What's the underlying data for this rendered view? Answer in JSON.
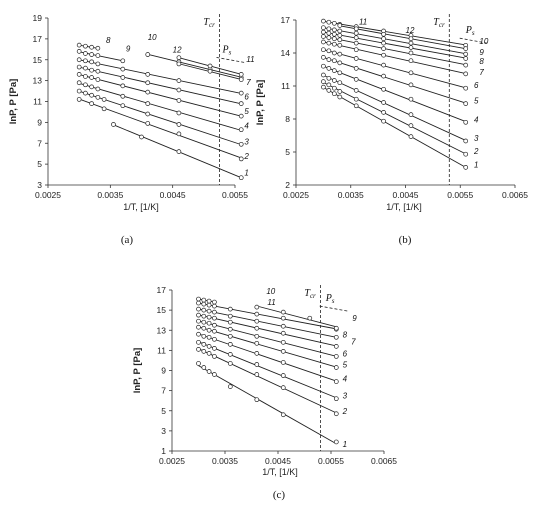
{
  "colors": {
    "ink": "#222222",
    "background": "#ffffff"
  },
  "chart_data": [
    {
      "type": "scatter",
      "panel_label": "(a)",
      "xlabel": "1/T, [1/K]",
      "ylabel": "lnP, P [Pa]",
      "xlim": [
        0.0025,
        0.0055
      ],
      "ylim": [
        3,
        19
      ],
      "xticks": [
        "0.0025",
        "0.0035",
        "0.0045",
        "0.0055"
      ],
      "yticks": [
        "3",
        "5",
        "7",
        "9",
        "11",
        "13",
        "15",
        "17",
        "19"
      ],
      "tcr_label": "T",
      "tcr_sub": "cr",
      "ps_label": "P",
      "ps_sub": "s",
      "tcr_x": 0.00525,
      "series": [
        {
          "name": "1",
          "x": [
            0.00355,
            0.004,
            0.0046,
            0.0056
          ],
          "y": [
            8.8,
            7.6,
            6.2,
            3.7
          ]
        },
        {
          "name": "2",
          "x": [
            0.003,
            0.0032,
            0.0034,
            0.0041,
            0.0046,
            0.0056
          ],
          "y": [
            11.2,
            10.8,
            10.3,
            8.9,
            7.9,
            5.5
          ]
        },
        {
          "name": "3",
          "x": [
            0.003,
            0.0031,
            0.0032,
            0.0033,
            0.0034,
            0.0037,
            0.0041,
            0.0046,
            0.0056
          ],
          "y": [
            12.0,
            11.8,
            11.6,
            11.4,
            11.2,
            10.6,
            9.8,
            8.8,
            6.9
          ]
        },
        {
          "name": "4",
          "x": [
            0.003,
            0.0031,
            0.0032,
            0.0033,
            0.0037,
            0.0041,
            0.0046,
            0.0056
          ],
          "y": [
            12.8,
            12.6,
            12.4,
            12.2,
            11.5,
            10.8,
            9.9,
            8.3
          ]
        },
        {
          "name": "5",
          "x": [
            0.003,
            0.0031,
            0.0032,
            0.0033,
            0.0037,
            0.0041,
            0.0046,
            0.0056
          ],
          "y": [
            13.6,
            13.4,
            13.3,
            13.1,
            12.5,
            11.9,
            11.1,
            9.6
          ]
        },
        {
          "name": "6",
          "x": [
            0.003,
            0.0031,
            0.0032,
            0.0033,
            0.0037,
            0.0041,
            0.0046,
            0.0056
          ],
          "y": [
            14.3,
            14.2,
            14.0,
            13.9,
            13.3,
            12.8,
            12.1,
            10.8
          ]
        },
        {
          "name": "7",
          "x": [
            0.003,
            0.0031,
            0.0032,
            0.0033,
            0.0037,
            0.0041,
            0.0046,
            0.0056
          ],
          "y": [
            15.0,
            14.9,
            14.8,
            14.6,
            14.1,
            13.6,
            13.0,
            11.8
          ]
        },
        {
          "name": "8",
          "x": [
            0.003,
            0.0031,
            0.0032,
            0.0033,
            0.0037
          ],
          "y": [
            15.8,
            15.6,
            15.5,
            15.4,
            14.9
          ]
        },
        {
          "name": "9",
          "x": [
            0.003,
            0.0031,
            0.0032,
            0.0033
          ],
          "y": [
            16.4,
            16.3,
            16.2,
            16.1
          ]
        },
        {
          "name": "10",
          "x": [
            0.0041,
            0.0046,
            0.0051,
            0.0056
          ],
          "y": [
            15.5,
            14.8,
            14.1,
            13.3
          ]
        },
        {
          "name": "11",
          "x": [
            0.0046,
            0.0051,
            0.0056
          ],
          "y": [
            15.2,
            14.4,
            13.6
          ]
        },
        {
          "name": "12",
          "x": [
            0.0046,
            0.0051,
            0.0056
          ],
          "y": [
            14.6,
            13.9,
            13.1
          ]
        }
      ]
    },
    {
      "type": "scatter",
      "panel_label": "(b)",
      "xlabel": "1/T, [1/K]",
      "ylabel": "lnP, P [Pa]",
      "xlim": [
        0.0025,
        0.0065
      ],
      "ylim": [
        2,
        17
      ],
      "xticks": [
        "0.0025",
        "0.0035",
        "0.0045",
        "0.0055",
        "0.0065"
      ],
      "yticks": [
        "2",
        "5",
        "8",
        "11",
        "14",
        "17"
      ],
      "tcr_label": "T",
      "tcr_sub": "cr",
      "ps_label": "P",
      "ps_sub": "s",
      "tcr_x": 0.0053,
      "series": [
        {
          "name": "1",
          "x": [
            0.003,
            0.0031,
            0.0032,
            0.0033,
            0.0036,
            0.0041,
            0.0046,
            0.0056
          ],
          "y": [
            10.9,
            10.6,
            10.3,
            10.0,
            9.2,
            7.8,
            6.4,
            3.6
          ]
        },
        {
          "name": "2",
          "x": [
            0.003,
            0.0031,
            0.0032,
            0.0033,
            0.0036,
            0.0041,
            0.0046,
            0.0056
          ],
          "y": [
            11.4,
            11.1,
            10.8,
            10.5,
            9.8,
            8.6,
            7.4,
            4.8
          ]
        },
        {
          "name": "3",
          "x": [
            0.003,
            0.0031,
            0.0032,
            0.0033,
            0.0036,
            0.0041,
            0.0046,
            0.0056
          ],
          "y": [
            12.0,
            11.7,
            11.5,
            11.3,
            10.6,
            9.5,
            8.4,
            6.0
          ]
        },
        {
          "name": "4",
          "x": [
            0.003,
            0.0031,
            0.0032,
            0.0033,
            0.0036,
            0.0041,
            0.0046,
            0.0056
          ],
          "y": [
            12.8,
            12.6,
            12.4,
            12.2,
            11.6,
            10.7,
            9.8,
            7.7
          ]
        },
        {
          "name": "5",
          "x": [
            0.003,
            0.0031,
            0.0032,
            0.0033,
            0.0036,
            0.0041,
            0.0046,
            0.0056
          ],
          "y": [
            13.6,
            13.4,
            13.3,
            13.1,
            12.6,
            11.9,
            11.1,
            9.4
          ]
        },
        {
          "name": "6",
          "x": [
            0.003,
            0.0031,
            0.0032,
            0.0033,
            0.0036,
            0.0041,
            0.0046,
            0.0056
          ],
          "y": [
            14.3,
            14.2,
            14.0,
            13.9,
            13.5,
            12.9,
            12.2,
            10.8
          ]
        },
        {
          "name": "7",
          "x": [
            0.003,
            0.0031,
            0.0032,
            0.0033,
            0.0036,
            0.0041,
            0.0046,
            0.0056
          ],
          "y": [
            15.0,
            14.9,
            14.8,
            14.7,
            14.3,
            13.8,
            13.3,
            12.1
          ]
        },
        {
          "name": "8",
          "x": [
            0.003,
            0.0031,
            0.0032,
            0.0033,
            0.0036,
            0.0041,
            0.0046,
            0.0056
          ],
          "y": [
            15.5,
            15.4,
            15.3,
            15.2,
            14.9,
            14.4,
            14.0,
            12.9
          ]
        },
        {
          "name": "9",
          "x": [
            0.003,
            0.0031,
            0.0032,
            0.0033,
            0.0036,
            0.0041,
            0.0046,
            0.0056
          ],
          "y": [
            15.9,
            15.8,
            15.7,
            15.6,
            15.4,
            14.9,
            14.5,
            13.5
          ]
        },
        {
          "name": "10",
          "x": [
            0.003,
            0.0031,
            0.0032,
            0.0033,
            0.0036,
            0.0041,
            0.0046,
            0.0056
          ],
          "y": [
            16.3,
            16.2,
            16.1,
            16.0,
            15.8,
            15.3,
            14.9,
            13.9
          ]
        },
        {
          "name": "11",
          "x": [
            0.003,
            0.0031,
            0.0032,
            0.0033,
            0.0036,
            0.0041,
            0.0046,
            0.0056
          ],
          "y": [
            16.9,
            16.8,
            16.7,
            16.6,
            16.4,
            16.0,
            15.6,
            14.7
          ]
        },
        {
          "name": "12",
          "x": [
            0.0033,
            0.0036,
            0.0041,
            0.0046,
            0.0056
          ],
          "y": [
            16.5,
            16.2,
            15.7,
            15.3,
            14.4
          ]
        }
      ]
    },
    {
      "type": "scatter",
      "panel_label": "(c)",
      "xlabel": "1/T, [1/K]",
      "ylabel": "lnP, P [Pa]",
      "xlim": [
        0.0025,
        0.0065
      ],
      "ylim": [
        1,
        17
      ],
      "xticks": [
        "0.0025",
        "0.0035",
        "0.0045",
        "0.0055",
        "0.0065"
      ],
      "yticks": [
        "1",
        "3",
        "5",
        "7",
        "9",
        "11",
        "13",
        "15",
        "17"
      ],
      "tcr_label": "T",
      "tcr_sub": "cr",
      "ps_label": "P",
      "ps_sub": "s",
      "tcr_x": 0.0053,
      "series": [
        {
          "name": "1",
          "x": [
            0.003,
            0.0031,
            0.0032,
            0.0033,
            0.0036,
            0.0041,
            0.0046,
            0.0056
          ],
          "y": [
            9.7,
            9.3,
            8.9,
            8.6,
            7.4,
            6.1,
            4.6,
            1.9
          ]
        },
        {
          "name": "2",
          "x": [
            0.003,
            0.0031,
            0.0032,
            0.0033,
            0.0036,
            0.0041,
            0.0046,
            0.0056
          ],
          "y": [
            11.1,
            10.9,
            10.7,
            10.4,
            9.7,
            8.6,
            7.3,
            4.7
          ]
        },
        {
          "name": "3",
          "x": [
            0.003,
            0.0031,
            0.0032,
            0.0033,
            0.0036,
            0.0041,
            0.0046,
            0.0056
          ],
          "y": [
            11.8,
            11.6,
            11.4,
            11.2,
            10.6,
            9.6,
            8.5,
            6.2
          ]
        },
        {
          "name": "4",
          "x": [
            0.003,
            0.0031,
            0.0032,
            0.0033,
            0.0036,
            0.0041,
            0.0046,
            0.0056
          ],
          "y": [
            12.6,
            12.4,
            12.3,
            12.1,
            11.6,
            10.7,
            9.8,
            7.9
          ]
        },
        {
          "name": "5",
          "x": [
            0.003,
            0.0031,
            0.0032,
            0.0033,
            0.0036,
            0.0041,
            0.0046,
            0.0056
          ],
          "y": [
            13.3,
            13.2,
            13.0,
            12.9,
            12.4,
            11.7,
            10.9,
            9.3
          ]
        },
        {
          "name": "6",
          "x": [
            0.003,
            0.0031,
            0.0032,
            0.0033,
            0.0036,
            0.0041,
            0.0046,
            0.0056
          ],
          "y": [
            13.9,
            13.8,
            13.7,
            13.5,
            13.1,
            12.4,
            11.8,
            10.4
          ]
        },
        {
          "name": "7",
          "x": [
            0.003,
            0.0031,
            0.0032,
            0.0033,
            0.0036,
            0.0041,
            0.0046,
            0.0056
          ],
          "y": [
            14.5,
            14.4,
            14.3,
            14.2,
            13.8,
            13.2,
            12.7,
            11.4
          ]
        },
        {
          "name": "8",
          "x": [
            0.003,
            0.0031,
            0.0032,
            0.0033,
            0.0036,
            0.0041,
            0.0046,
            0.0056
          ],
          "y": [
            15.1,
            15.0,
            14.9,
            14.8,
            14.4,
            13.9,
            13.4,
            12.3
          ]
        },
        {
          "name": "9",
          "x": [
            0.003,
            0.0031,
            0.0032,
            0.0033,
            0.0036,
            0.0041,
            0.0046,
            0.0056
          ],
          "y": [
            15.7,
            15.6,
            15.5,
            15.4,
            15.1,
            14.6,
            14.2,
            13.1
          ]
        },
        {
          "name": "10",
          "x": [
            0.003,
            0.0031,
            0.0032,
            0.0033
          ],
          "y": [
            16.1,
            16.0,
            15.9,
            15.8
          ]
        },
        {
          "name": "11",
          "x": [
            0.0041,
            0.0046,
            0.0051,
            0.0056
          ],
          "y": [
            15.3,
            14.8,
            14.2,
            13.2
          ]
        }
      ]
    }
  ]
}
